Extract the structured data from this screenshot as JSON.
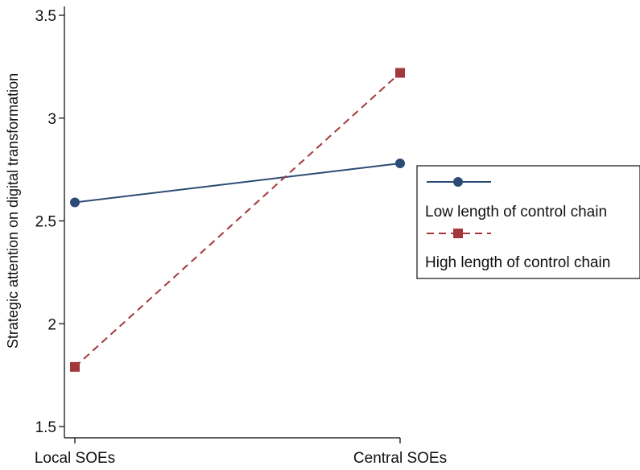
{
  "chart_data": {
    "type": "line",
    "categories": [
      "Local SOEs",
      "Central SOEs"
    ],
    "ylabel": "Strategic attention on digital transformation",
    "xlabel": "",
    "ylim": [
      1.5,
      3.5
    ],
    "yticks": [
      1.5,
      2,
      2.5,
      3,
      3.5
    ],
    "yticks_labels": [
      "1.5",
      "2",
      "2.5",
      "3",
      "3.5"
    ],
    "grid": false,
    "legend_position": "right",
    "series": [
      {
        "name": "Low length of control chain",
        "values": [
          2.59,
          2.78
        ],
        "color": "#2b4b75",
        "dash": "solid",
        "marker": "circle"
      },
      {
        "name": "High length of control chain",
        "values": [
          1.79,
          3.22
        ],
        "color": "#a3383c",
        "dash": "dashed",
        "marker": "square"
      }
    ]
  }
}
